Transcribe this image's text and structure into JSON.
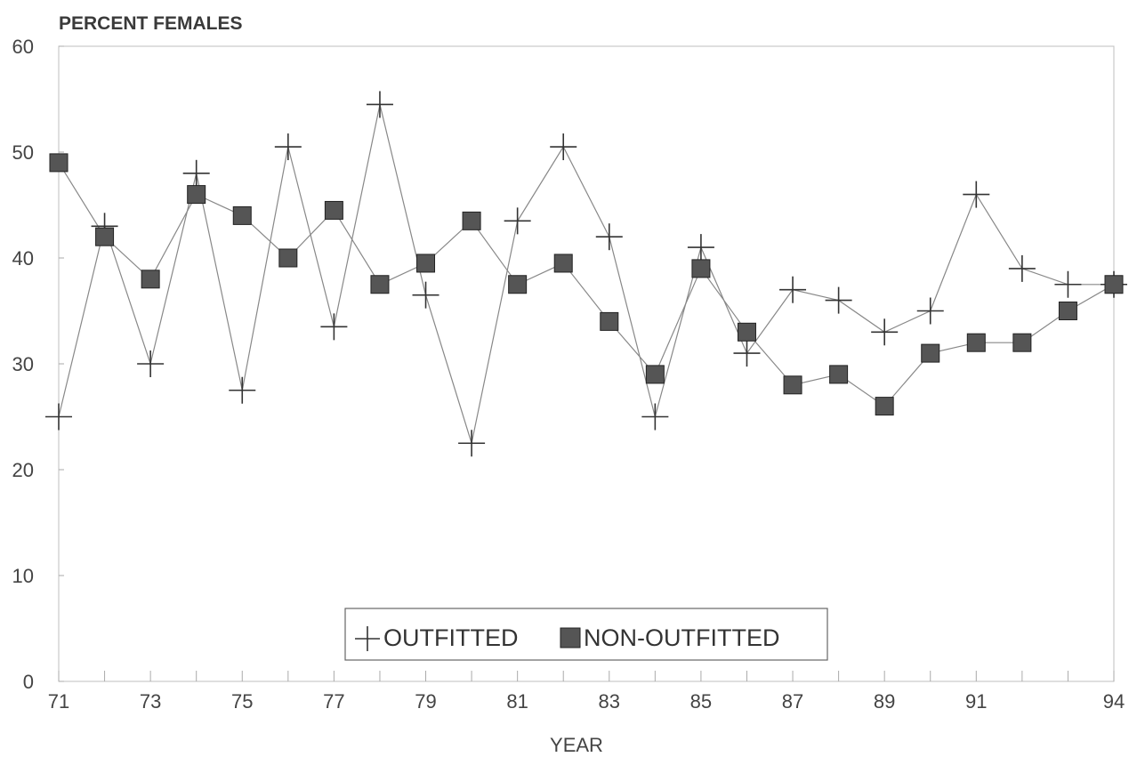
{
  "chart_data": {
    "type": "line",
    "title": "PERCENT FEMALES",
    "xlabel": "YEAR",
    "ylabel": "",
    "x": [
      71,
      72,
      73,
      74,
      75,
      76,
      77,
      78,
      79,
      80,
      81,
      82,
      83,
      84,
      85,
      86,
      87,
      88,
      89,
      90,
      91,
      92,
      93,
      94
    ],
    "x_tick_labels": [
      "71",
      "73",
      "75",
      "77",
      "79",
      "81",
      "83",
      "85",
      "87",
      "89",
      "91",
      "94"
    ],
    "x_tick_values": [
      71,
      73,
      75,
      77,
      79,
      81,
      83,
      85,
      87,
      89,
      91,
      94
    ],
    "y_tick_labels": [
      "0",
      "10",
      "20",
      "30",
      "40",
      "50",
      "60"
    ],
    "xlim": [
      71,
      94
    ],
    "ylim": [
      0,
      60
    ],
    "grid": false,
    "legend_position": "bottom-center",
    "series": [
      {
        "name": "OUTFITTED",
        "marker": "plus",
        "color": "#333333",
        "values": [
          25,
          43,
          30,
          48,
          27.5,
          50.5,
          33.5,
          54.5,
          36.5,
          22.5,
          43.5,
          50.5,
          42,
          25,
          41,
          31,
          37,
          36,
          33,
          35,
          46,
          39,
          37.5,
          37.5
        ]
      },
      {
        "name": "NON-OUTFITTED",
        "marker": "square",
        "color": "#555555",
        "values": [
          49,
          42,
          38,
          46,
          44,
          40,
          44.5,
          37.5,
          39.5,
          43.5,
          37.5,
          39.5,
          34,
          29,
          39,
          33,
          28,
          29,
          26,
          31,
          32,
          32,
          35,
          37.5
        ]
      }
    ]
  }
}
